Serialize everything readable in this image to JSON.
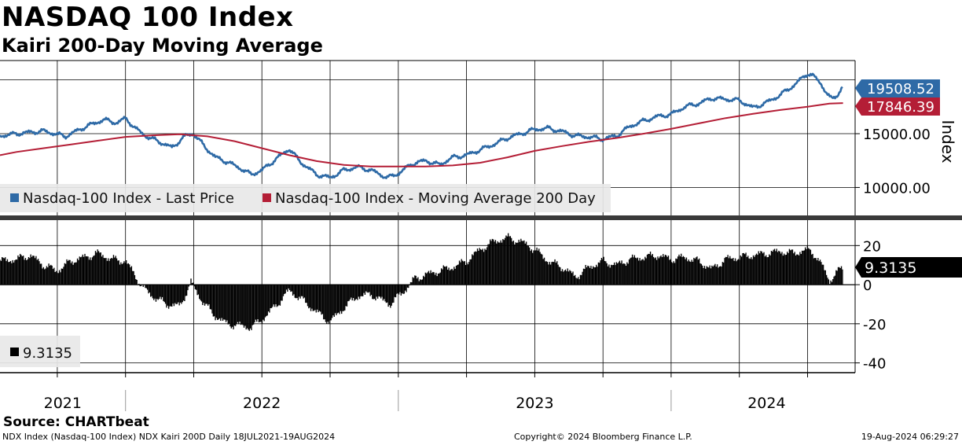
{
  "header": {
    "title": "NASDAQ 100 Index",
    "subtitle": "Kairi 200-Day Moving Average"
  },
  "footer": {
    "source": "Source: CHARTbeat",
    "description": "NDX Index (Nasdaq-100 Index) NDX Kairi 200D  Daily 18JUL2021-19AUG2024",
    "copyright": "Copyright© 2024 Bloomberg Finance L.P.",
    "timestamp": "19-Aug-2024 06:29:27"
  },
  "colors": {
    "price": "#2e6aa6",
    "ma": "#b41e36",
    "kairi": "#000000",
    "grid": "#000000",
    "separator": "#3a3a3a"
  },
  "chart_data": [
    {
      "type": "line",
      "panel": "upper",
      "axis_title": "Index",
      "y_ticks": [
        10000,
        15000
      ],
      "y_tick_labels": [
        "10000.00",
        "15000.00"
      ],
      "ylim": [
        7400,
        21800
      ],
      "legend": {
        "placement": "bottom-left",
        "entries": [
          "Nasdaq-100 Index - Last Price",
          "Nasdaq-100 Index - Moving Average 200 Day"
        ]
      },
      "series": [
        {
          "name": "Nasdaq-100 Index - Last Price",
          "color": "#2e6aa6",
          "last_label": "19508.52",
          "points": [
            [
              2021.54,
              14800
            ],
            [
              2021.62,
              15050
            ],
            [
              2021.7,
              15250
            ],
            [
              2021.78,
              14750
            ],
            [
              2021.85,
              15600
            ],
            [
              2021.92,
              16300
            ],
            [
              2021.97,
              16000
            ],
            [
              2022.0,
              16450
            ],
            [
              2022.04,
              15400
            ],
            [
              2022.08,
              14700
            ],
            [
              2022.12,
              14300
            ],
            [
              2022.17,
              13700
            ],
            [
              2022.22,
              14800
            ],
            [
              2022.25,
              15000
            ],
            [
              2022.29,
              13800
            ],
            [
              2022.33,
              12800
            ],
            [
              2022.37,
              12400
            ],
            [
              2022.42,
              11800
            ],
            [
              2022.46,
              11200
            ],
            [
              2022.5,
              11600
            ],
            [
              2022.55,
              12600
            ],
            [
              2022.6,
              13600
            ],
            [
              2022.64,
              12400
            ],
            [
              2022.7,
              11200
            ],
            [
              2022.75,
              10900
            ],
            [
              2022.8,
              11600
            ],
            [
              2022.85,
              11900
            ],
            [
              2022.9,
              11600
            ],
            [
              2022.96,
              10900
            ],
            [
              2023.0,
              11300
            ],
            [
              2023.05,
              12200
            ],
            [
              2023.1,
              12500
            ],
            [
              2023.15,
              12100
            ],
            [
              2023.2,
              12800
            ],
            [
              2023.25,
              13000
            ],
            [
              2023.3,
              13500
            ],
            [
              2023.35,
              14000
            ],
            [
              2023.4,
              14600
            ],
            [
              2023.45,
              15000
            ],
            [
              2023.5,
              15400
            ],
            [
              2023.55,
              15500
            ],
            [
              2023.6,
              15200
            ],
            [
              2023.65,
              14800
            ],
            [
              2023.7,
              14700
            ],
            [
              2023.75,
              14500
            ],
            [
              2023.8,
              14800
            ],
            [
              2023.85,
              15700
            ],
            [
              2023.9,
              16200
            ],
            [
              2023.95,
              16600
            ],
            [
              2024.0,
              16800
            ],
            [
              2024.05,
              17500
            ],
            [
              2024.1,
              17800
            ],
            [
              2024.15,
              18300
            ],
            [
              2024.2,
              18200
            ],
            [
              2024.25,
              18100
            ],
            [
              2024.3,
              17400
            ],
            [
              2024.35,
              17900
            ],
            [
              2024.4,
              18600
            ],
            [
              2024.45,
              19500
            ],
            [
              2024.5,
              20600
            ],
            [
              2024.52,
              20400
            ],
            [
              2024.55,
              19600
            ],
            [
              2024.58,
              18400
            ],
            [
              2024.59,
              18200
            ],
            [
              2024.61,
              18600
            ],
            [
              2024.63,
              19508.52
            ]
          ]
        },
        {
          "name": "Nasdaq-100 Index - Moving Average 200 Day",
          "color": "#b41e36",
          "last_label": "17846.39",
          "points": [
            [
              2021.54,
              13000
            ],
            [
              2021.6,
              13300
            ],
            [
              2021.7,
              13650
            ],
            [
              2021.8,
              14000
            ],
            [
              2021.9,
              14350
            ],
            [
              2022.0,
              14700
            ],
            [
              2022.1,
              14850
            ],
            [
              2022.2,
              14950
            ],
            [
              2022.3,
              14750
            ],
            [
              2022.4,
              14300
            ],
            [
              2022.5,
              13650
            ],
            [
              2022.6,
              13000
            ],
            [
              2022.7,
              12450
            ],
            [
              2022.8,
              12100
            ],
            [
              2022.9,
              11950
            ],
            [
              2023.0,
              11950
            ],
            [
              2023.1,
              11950
            ],
            [
              2023.2,
              12050
            ],
            [
              2023.3,
              12300
            ],
            [
              2023.4,
              12800
            ],
            [
              2023.5,
              13400
            ],
            [
              2023.6,
              13850
            ],
            [
              2023.7,
              14250
            ],
            [
              2023.8,
              14600
            ],
            [
              2023.9,
              15000
            ],
            [
              2024.0,
              15450
            ],
            [
              2024.1,
              15950
            ],
            [
              2024.2,
              16450
            ],
            [
              2024.3,
              16850
            ],
            [
              2024.4,
              17200
            ],
            [
              2024.5,
              17500
            ],
            [
              2024.58,
              17800
            ],
            [
              2024.63,
              17846.39
            ]
          ]
        }
      ]
    },
    {
      "type": "bar",
      "panel": "lower",
      "y_ticks": [
        20,
        0,
        -20,
        -40
      ],
      "y_tick_labels": [
        "20",
        "0",
        "-20",
        "-40"
      ],
      "ylim": [
        -45,
        33
      ],
      "last_label": "9.3135",
      "legend": {
        "placement": "bottom-left",
        "entries": [
          "9.3135"
        ]
      },
      "points": [
        [
          2021.54,
          12
        ],
        [
          2021.6,
          13
        ],
        [
          2021.65,
          15
        ],
        [
          2021.7,
          10
        ],
        [
          2021.75,
          7
        ],
        [
          2021.8,
          12
        ],
        [
          2021.85,
          14
        ],
        [
          2021.9,
          16
        ],
        [
          2021.95,
          13
        ],
        [
          2022.0,
          12
        ],
        [
          2022.03,
          6
        ],
        [
          2022.06,
          -1
        ],
        [
          2022.1,
          -6
        ],
        [
          2022.15,
          -10
        ],
        [
          2022.2,
          -11
        ],
        [
          2022.24,
          1
        ],
        [
          2022.28,
          -8
        ],
        [
          2022.32,
          -15
        ],
        [
          2022.37,
          -20
        ],
        [
          2022.42,
          -21
        ],
        [
          2022.46,
          -22
        ],
        [
          2022.5,
          -18
        ],
        [
          2022.55,
          -11
        ],
        [
          2022.6,
          -3
        ],
        [
          2022.65,
          -8
        ],
        [
          2022.7,
          -14
        ],
        [
          2022.75,
          -19
        ],
        [
          2022.8,
          -12
        ],
        [
          2022.85,
          -6
        ],
        [
          2022.9,
          -5
        ],
        [
          2022.94,
          -8
        ],
        [
          2022.97,
          -10
        ],
        [
          2023.0,
          -6
        ],
        [
          2023.03,
          -2
        ],
        [
          2023.06,
          3
        ],
        [
          2023.1,
          5
        ],
        [
          2023.15,
          7
        ],
        [
          2023.2,
          9
        ],
        [
          2023.25,
          12
        ],
        [
          2023.3,
          18
        ],
        [
          2023.35,
          22
        ],
        [
          2023.4,
          24
        ],
        [
          2023.45,
          22
        ],
        [
          2023.5,
          18
        ],
        [
          2023.55,
          12
        ],
        [
          2023.6,
          9
        ],
        [
          2023.65,
          4
        ],
        [
          2023.7,
          9
        ],
        [
          2023.75,
          12
        ],
        [
          2023.8,
          10
        ],
        [
          2023.85,
          13
        ],
        [
          2023.9,
          14
        ],
        [
          2023.95,
          15
        ],
        [
          2024.0,
          13
        ],
        [
          2024.05,
          14
        ],
        [
          2024.1,
          12
        ],
        [
          2024.15,
          8
        ],
        [
          2024.2,
          13
        ],
        [
          2024.25,
          14
        ],
        [
          2024.3,
          15
        ],
        [
          2024.35,
          16
        ],
        [
          2024.4,
          17
        ],
        [
          2024.45,
          16
        ],
        [
          2024.5,
          18
        ],
        [
          2024.53,
          15
        ],
        [
          2024.56,
          8
        ],
        [
          2024.58,
          2
        ],
        [
          2024.6,
          5
        ],
        [
          2024.63,
          9.3135
        ]
      ]
    },
    {
      "type": "axis",
      "panel": "x-axis",
      "x_labels": [
        {
          "label": "2021",
          "center": 2021.77
        },
        {
          "label": "2022",
          "center": 2022.5
        },
        {
          "label": "2023",
          "center": 2023.5
        },
        {
          "label": "2024",
          "center": 2024.35
        }
      ],
      "year_boundaries": [
        2022.0,
        2023.0,
        2024.0
      ],
      "quarter_gridlines": [
        2021.75,
        2022.0,
        2022.25,
        2022.5,
        2022.75,
        2023.0,
        2023.25,
        2023.5,
        2023.75,
        2024.0,
        2024.25,
        2024.5
      ],
      "xlim": [
        2021.54,
        2024.68
      ]
    }
  ]
}
